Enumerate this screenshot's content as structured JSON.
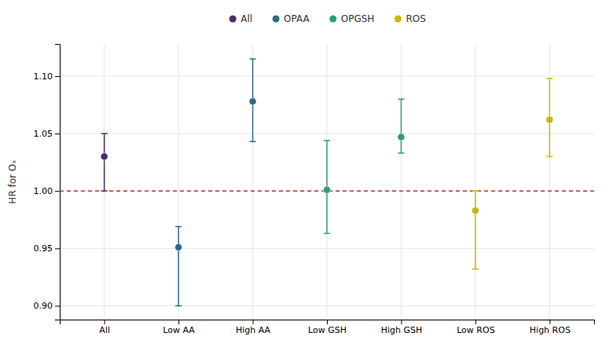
{
  "chart_data": {
    "type": "scatter",
    "categories": [
      "All",
      "Low AA",
      "High AA",
      "Low GSH",
      "High GSH",
      "Low ROS",
      "High ROS"
    ],
    "series": [
      {
        "name": "All",
        "color": "#4a2c6e",
        "marker": "circle",
        "values": [
          1.03,
          null,
          null,
          null,
          null,
          null,
          null
        ],
        "ci_low": [
          1.0,
          null,
          null,
          null,
          null,
          null,
          null
        ],
        "ci_high": [
          1.05,
          null,
          null,
          null,
          null,
          null,
          null
        ]
      },
      {
        "name": "OPAA",
        "color": "#2b6a8a",
        "marker": "circle",
        "values": [
          null,
          0.951,
          1.078,
          null,
          null,
          null,
          null
        ],
        "ci_low": [
          null,
          0.9,
          1.043,
          null,
          null,
          null,
          null
        ],
        "ci_high": [
          null,
          0.969,
          1.115,
          null,
          null,
          null,
          null
        ]
      },
      {
        "name": "OPGSH",
        "color": "#2e9e72",
        "marker": "circle",
        "values": [
          null,
          null,
          null,
          1.001,
          1.047,
          null,
          null
        ],
        "ci_low": [
          null,
          null,
          null,
          0.963,
          1.033,
          null,
          null
        ],
        "ci_high": [
          null,
          null,
          null,
          1.044,
          1.08,
          null,
          null
        ]
      },
      {
        "name": "ROS",
        "color": "#c8b800",
        "marker": "circle",
        "values": [
          null,
          null,
          null,
          null,
          null,
          0.983,
          1.062
        ],
        "ci_low": [
          null,
          null,
          null,
          null,
          null,
          0.932,
          1.03
        ],
        "ci_high": [
          null,
          null,
          null,
          null,
          null,
          1.0,
          1.098
        ]
      }
    ],
    "ref_line": {
      "value": 1.0,
      "color": "#b03a2e"
    },
    "ylabel": "HR for Oₓ",
    "ylim": [
      0.888,
      1.128
    ],
    "yticks": [
      {
        "value": 0.9,
        "label": "0.90"
      },
      0.95,
      {
        "value": 1.0,
        "label": "1.00"
      },
      1.05,
      {
        "value": 1.1,
        "label": "1.10"
      }
    ],
    "grid": true,
    "legend": "top"
  }
}
